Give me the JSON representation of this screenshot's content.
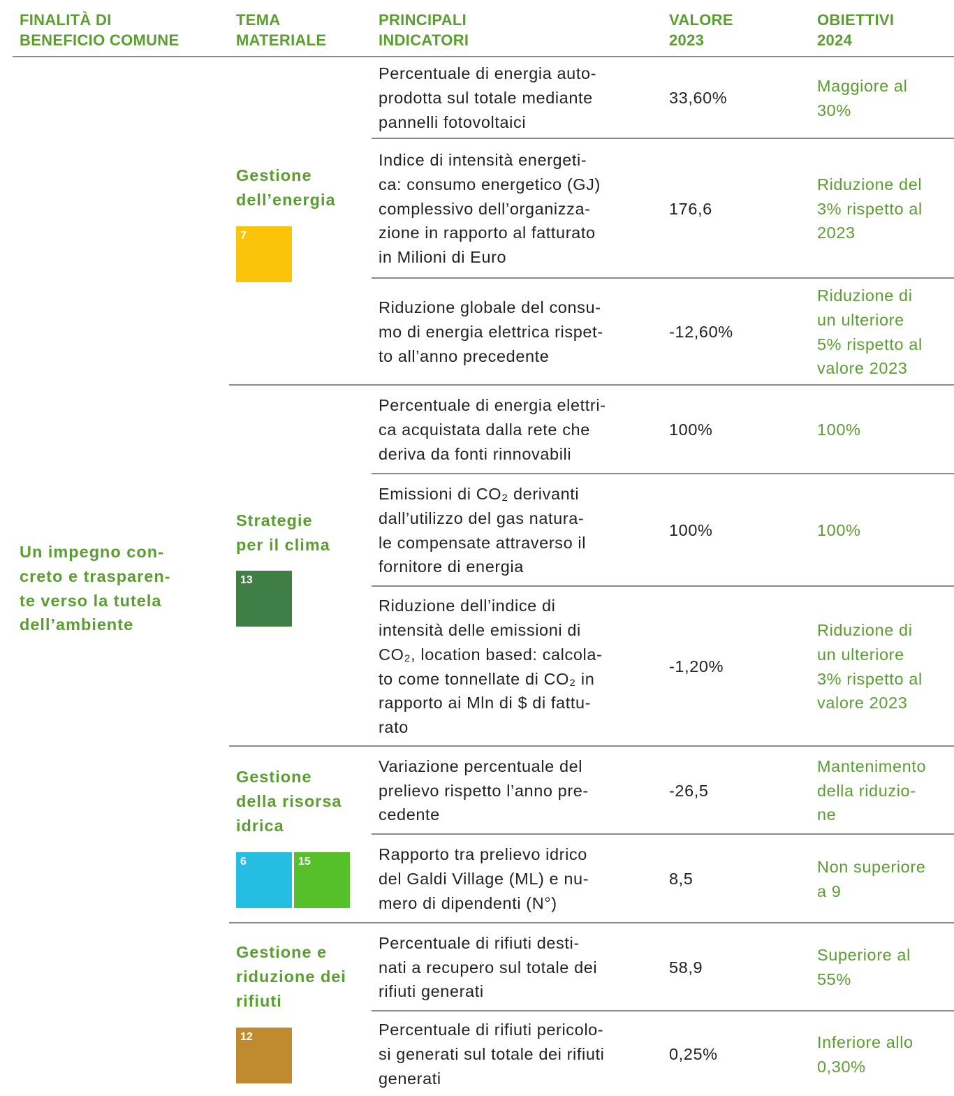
{
  "header": {
    "columns": [
      [
        "FINALITÀ DI",
        "BENEFICIO COMUNE"
      ],
      [
        "TEMA",
        "MATERIALE"
      ],
      [
        "PRINCIPALI",
        "INDICATORI"
      ],
      [
        "VALORE",
        "2023"
      ],
      [
        "OBIETTIVI",
        "2024"
      ]
    ]
  },
  "table": {
    "purpose": [
      "Un impegno con-",
      "creto e trasparen-",
      "te verso la tutela",
      "dell’ambiente"
    ],
    "groups": [
      {
        "theme": [
          "Gestione",
          "dell’energia"
        ],
        "sdg": [
          "7"
        ],
        "rows": [
          {
            "indicator": [
              "Percentuale di energia auto-",
              "prodotta sul totale mediante",
              "pannelli fotovoltaici"
            ],
            "value": "33,60%",
            "target": [
              "Maggiore al",
              "30%"
            ]
          },
          {
            "indicator": [
              "Indice di intensità energeti-",
              "ca: consumo energetico (GJ)",
              "complessivo dell’organizza-",
              "zione in rapporto al fatturato",
              "in Milioni di Euro"
            ],
            "value": "176,6",
            "target": [
              "Riduzione del",
              "3% rispetto al",
              "2023"
            ]
          },
          {
            "indicator": [
              "Riduzione globale del consu-",
              "mo di energia elettrica rispet-",
              "to all’anno precedente"
            ],
            "value": "-12,60%",
            "target": [
              "Riduzione di",
              "un ulteriore",
              "5% rispetto al",
              "valore 2023"
            ]
          }
        ]
      },
      {
        "theme": [
          "Strategie",
          "per il clima"
        ],
        "sdg": [
          "13"
        ],
        "rows": [
          {
            "indicator": [
              "Percentuale di energia elettri-",
              "ca acquistata dalla rete che",
              "deriva da fonti rinnovabili"
            ],
            "value": "100%",
            "target": [
              "100%"
            ]
          },
          {
            "indicator": [
              "Emissioni di CO₂ derivanti",
              "dall’utilizzo del gas natura-",
              "le compensate attraverso il",
              "fornitore di energia"
            ],
            "value": "100%",
            "target": [
              "100%"
            ]
          },
          {
            "indicator": [
              "Riduzione dell’indice di",
              "intensità delle emissioni di",
              "CO₂, location based: calcola-",
              "to come tonnellate di CO₂ in",
              "rapporto ai Mln di $ di fattu-",
              "rato"
            ],
            "value": "-1,20%",
            "target": [
              "Riduzione di",
              "un ulteriore",
              "3% rispetto al",
              "valore 2023"
            ]
          }
        ]
      },
      {
        "theme": [
          "Gestione",
          "della risorsa",
          "idrica"
        ],
        "sdg": [
          "6",
          "15"
        ],
        "rows": [
          {
            "indicator": [
              "Variazione percentuale del",
              "prelievo rispetto l’anno pre-",
              "cedente"
            ],
            "value": "-26,5",
            "target": [
              "Mantenimento",
              "della riduzio-",
              "ne"
            ]
          },
          {
            "indicator": [
              "Rapporto tra prelievo idrico",
              "del Galdi Village (ML) e nu-",
              "mero di dipendenti (N°)"
            ],
            "value": "8,5",
            "target": [
              "Non superiore",
              "a 9"
            ]
          }
        ]
      },
      {
        "theme": [
          "Gestione e",
          "riduzione dei",
          "rifiuti"
        ],
        "sdg": [
          "12"
        ],
        "rows": [
          {
            "indicator": [
              "Percentuale di rifiuti desti-",
              "nati a recupero sul totale dei",
              "rifiuti generati"
            ],
            "value": "58,9",
            "target": [
              "Superiore al",
              "55%"
            ]
          },
          {
            "indicator": [
              "Percentuale di rifiuti pericolo-",
              "si generati sul totale dei rifiuti",
              "generati"
            ],
            "value": "0,25%",
            "target": [
              "Inferiore allo",
              "0,30%"
            ]
          }
        ]
      }
    ]
  }
}
